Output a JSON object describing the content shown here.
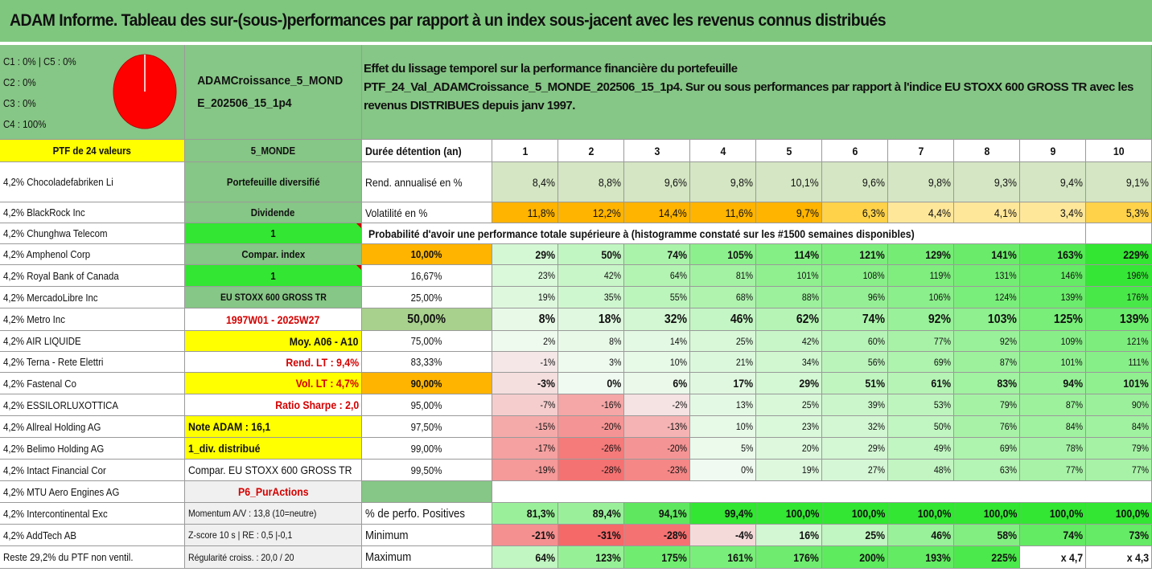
{
  "title": "ADAM Informe. Tableau des sur-(sous-)performances par rapport à un index sous-jacent avec les revenus connus distribués",
  "colors": {
    "title_bg": "#7fc77f",
    "yellow": "#ffff00",
    "bright_green": "#33e633",
    "orange": "#ffb400",
    "red_text": "#d40000",
    "panel_green": "#86c686"
  },
  "pie": {
    "lines": [
      "C1 : 0% | C5 : 0%",
      "C2 : 0%",
      "C3 : 0%",
      "C4 : 100%"
    ],
    "values": [
      0,
      0,
      0,
      100,
      0
    ],
    "color": "#ff0000"
  },
  "portfolio": {
    "name": "ADAMCroissance_5_MONDE_202506_15_1p4"
  },
  "info": {
    "line1": "Effet du lissage temporel sur la performance financière du portefeuille",
    "line2": "PTF_24_Val_ADAMCroissance_5_MONDE_202506_15_1p4. Sur ou sous performances par rapport à l'indice EU STOXX 600 GROSS TR avec les revenus DISTRIBUES depuis janv 1997."
  },
  "holdings_header": "PTF de 24 valeurs",
  "holdings": [
    "4,2% Chocoladefabriken Li",
    "4,2% BlackRock Inc",
    "4,2% Chunghwa Telecom",
    "4,2% Amphenol Corp",
    "4,2% Royal Bank of Canada",
    "4,2% MercadoLibre Inc",
    "4,2% Metro Inc",
    "4,2% AIR LIQUIDE",
    "4,2% Terna - Rete Elettri",
    "4,2% Fastenal Co",
    "4,2% ESSILORLUXOTTICA",
    "4,2% Allreal Holding AG",
    "4,2% Belimo Holding AG",
    "4,2% Intact Financial Cor",
    "4,2% MTU Aero Engines AG",
    "4,2% Intercontinental Exc",
    "4,2% AddTech AB",
    "Reste 29,2% du PTF non ventil."
  ],
  "params": {
    "header": "5_MONDE",
    "type": "Portefeuille diversifié",
    "dividend": "Dividende",
    "one_a": "1",
    "compar_label": "Compar. index",
    "one_b": "1",
    "index": "EU STOXX 600 GROSS TR",
    "period": "1997W01 - 2025W27",
    "moy": "Moy. A06 - A10",
    "rend": "Rend. LT : 9,4%",
    "vol": "Vol. LT : 4,7%",
    "sharpe": "Ratio Sharpe : 2,0",
    "note": "Note ADAM : 16,1",
    "div": "1_div. distribué",
    "compar_full": "Compar. EU STOXX 600 GROSS TR",
    "p6": "P6_PurActions",
    "momentum": "Momentum A/V : 13,8 (10=neutre)",
    "zscore": "Z-score 10 s | RE : 0,5 |-0,1",
    "regularite": "Régularité croiss. : 20,0 / 20"
  },
  "table": {
    "duration_label": "Durée détention (an)",
    "years": [
      "1",
      "2",
      "3",
      "4",
      "5",
      "6",
      "7",
      "8",
      "9",
      "10"
    ],
    "rend_label": "Rend. annualisé en %",
    "rend": [
      "8,4%",
      "8,8%",
      "9,6%",
      "9,8%",
      "10,1%",
      "9,6%",
      "9,8%",
      "9,3%",
      "9,4%",
      "9,1%"
    ],
    "vol_label": "Volatilité en %",
    "vol": [
      "11,8%",
      "12,2%",
      "14,4%",
      "11,6%",
      "9,7%",
      "6,3%",
      "4,4%",
      "4,1%",
      "3,4%",
      "5,3%"
    ],
    "prob_header": "Probabilité d'avoir une performance totale supérieure à (histogramme constaté sur les #1500 semaines disponibles)",
    "prob_rows": [
      {
        "p": "10,00%",
        "v": [
          "29%",
          "50%",
          "74%",
          "105%",
          "114%",
          "121%",
          "129%",
          "141%",
          "163%",
          "229%"
        ]
      },
      {
        "p": "16,67%",
        "v": [
          "23%",
          "42%",
          "64%",
          "81%",
          "101%",
          "108%",
          "119%",
          "131%",
          "146%",
          "196%"
        ]
      },
      {
        "p": "25,00%",
        "v": [
          "19%",
          "35%",
          "55%",
          "68%",
          "88%",
          "96%",
          "106%",
          "124%",
          "139%",
          "176%"
        ]
      },
      {
        "p": "50,00%",
        "v": [
          "8%",
          "18%",
          "32%",
          "46%",
          "62%",
          "74%",
          "92%",
          "103%",
          "125%",
          "139%"
        ]
      },
      {
        "p": "75,00%",
        "v": [
          "2%",
          "8%",
          "14%",
          "25%",
          "42%",
          "60%",
          "77%",
          "92%",
          "109%",
          "121%"
        ]
      },
      {
        "p": "83,33%",
        "v": [
          "-1%",
          "3%",
          "10%",
          "21%",
          "34%",
          "56%",
          "69%",
          "87%",
          "101%",
          "111%"
        ]
      },
      {
        "p": "90,00%",
        "v": [
          "-3%",
          "0%",
          "6%",
          "17%",
          "29%",
          "51%",
          "61%",
          "83%",
          "94%",
          "101%"
        ]
      },
      {
        "p": "95,00%",
        "v": [
          "-7%",
          "-16%",
          "-2%",
          "13%",
          "25%",
          "39%",
          "53%",
          "79%",
          "87%",
          "90%"
        ]
      },
      {
        "p": "97,50%",
        "v": [
          "-15%",
          "-20%",
          "-13%",
          "10%",
          "23%",
          "32%",
          "50%",
          "76%",
          "84%",
          "84%"
        ]
      },
      {
        "p": "99,00%",
        "v": [
          "-17%",
          "-26%",
          "-20%",
          "5%",
          "20%",
          "29%",
          "49%",
          "69%",
          "78%",
          "79%"
        ]
      },
      {
        "p": "99,50%",
        "v": [
          "-19%",
          "-28%",
          "-23%",
          "0%",
          "19%",
          "27%",
          "48%",
          "63%",
          "77%",
          "77%"
        ]
      }
    ],
    "pos_label": "% de perfo. Positives",
    "pos": [
      "81,3%",
      "89,4%",
      "94,1%",
      "99,4%",
      "100,0%",
      "100,0%",
      "100,0%",
      "100,0%",
      "100,0%",
      "100,0%"
    ],
    "min_label": "Minimum",
    "min": [
      "-21%",
      "-31%",
      "-28%",
      "-4%",
      "16%",
      "25%",
      "46%",
      "58%",
      "74%",
      "73%"
    ],
    "max_label": "Maximum",
    "max": [
      "64%",
      "123%",
      "175%",
      "161%",
      "176%",
      "200%",
      "193%",
      "225%",
      "x 4,7",
      "x 4,3"
    ]
  }
}
